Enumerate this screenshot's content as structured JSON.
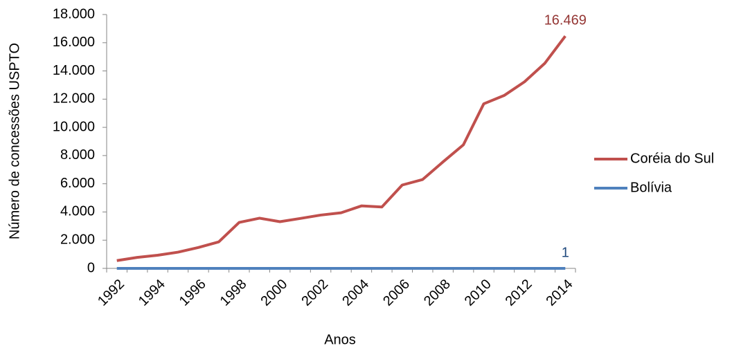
{
  "chart_data": {
    "type": "line",
    "categories": [
      "1992",
      null,
      "1994",
      null,
      "1996",
      null,
      "1998",
      null,
      "2000",
      null,
      "2002",
      null,
      "2004",
      null,
      "2006",
      null,
      "2008",
      null,
      "2010",
      null,
      "2012",
      null,
      "2014"
    ],
    "series": [
      {
        "name": "Coréia do Sul",
        "color": "#c0504d",
        "label_color": "#943634",
        "values": [
          550,
          780,
          930,
          1150,
          1480,
          1880,
          3260,
          3560,
          3310,
          3540,
          3780,
          3940,
          4430,
          4350,
          5910,
          6300,
          7550,
          8760,
          11670,
          12260,
          13230,
          14550,
          16469
        ],
        "value_labels": [
          null,
          null,
          null,
          null,
          null,
          null,
          null,
          null,
          null,
          null,
          null,
          null,
          null,
          null,
          null,
          null,
          null,
          null,
          null,
          null,
          null,
          null,
          "16.469"
        ]
      },
      {
        "name": "Bolívia",
        "color": "#4f81bd",
        "label_color": "#1f497d",
        "values": [
          2,
          1,
          3,
          1,
          2,
          2,
          1,
          3,
          1,
          2,
          1,
          1,
          2,
          3,
          2,
          1,
          2,
          1,
          3,
          2,
          1,
          2,
          1
        ],
        "value_labels": [
          null,
          null,
          null,
          null,
          null,
          null,
          null,
          null,
          null,
          null,
          null,
          null,
          null,
          null,
          null,
          null,
          null,
          null,
          null,
          null,
          null,
          null,
          "1"
        ]
      }
    ],
    "ylim": [
      0,
      18000
    ],
    "yticks": [
      0,
      {
        "value": 2000,
        "label": "2.000"
      },
      {
        "value": 4000,
        "label": "4.000"
      },
      {
        "value": 6000,
        "label": "6.000"
      },
      {
        "value": 8000,
        "label": "8.000"
      },
      {
        "value": 10000,
        "label": "10.000"
      },
      {
        "value": 12000,
        "label": "12.000"
      },
      {
        "value": 14000,
        "label": "14.000"
      },
      {
        "value": 16000,
        "label": "16.000"
      },
      {
        "value": 18000,
        "label": "18.000"
      }
    ],
    "y_label": "Número de concessões USPTO",
    "x_label": "Anos",
    "legend": "right"
  }
}
